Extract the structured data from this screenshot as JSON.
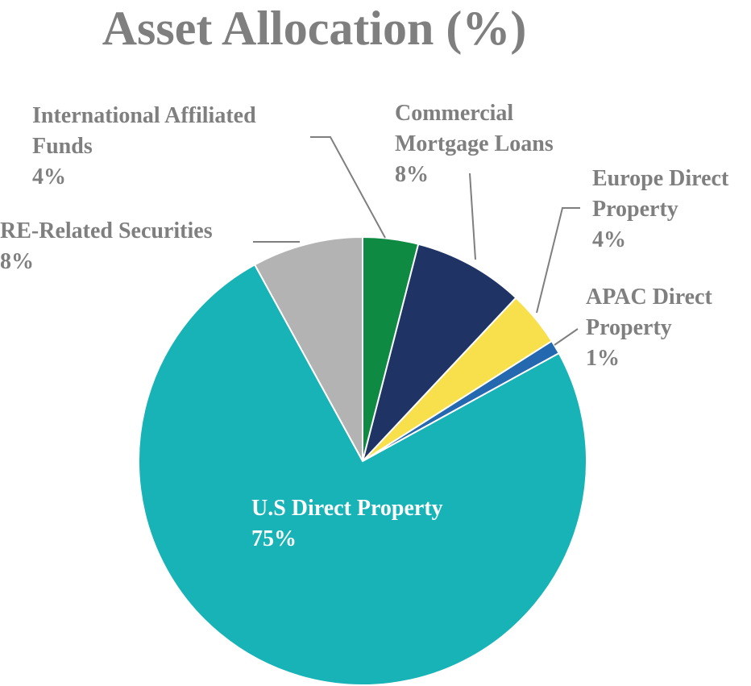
{
  "chart_data": {
    "type": "pie",
    "title": "Asset Allocation (%)",
    "categories": [
      "International Affiliated Funds",
      "Commercial Mortgage Loans",
      "Europe Direct Property",
      "APAC Direct Property",
      "U.S Direct Property",
      "RE-Related Securities"
    ],
    "values": [
      4,
      8,
      4,
      1,
      75,
      8
    ],
    "value_labels": [
      "4%",
      "8%",
      "4%",
      "1%",
      "75%",
      "8%"
    ],
    "colors": [
      "#0e8a43",
      "#1f3464",
      "#f7e04b",
      "#2468b0",
      "#17b3b6",
      "#b3b3b3"
    ]
  }
}
